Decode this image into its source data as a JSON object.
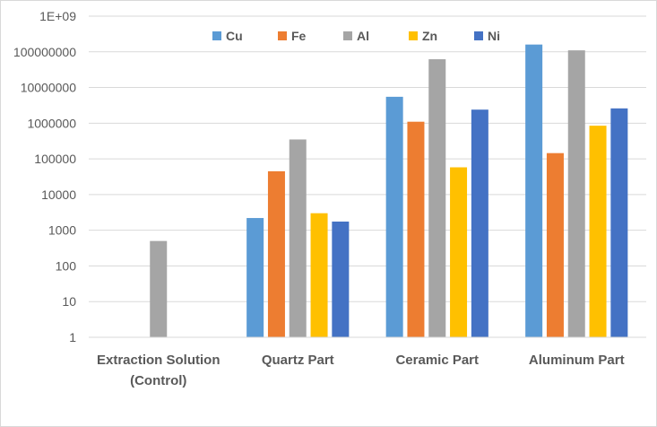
{
  "chart_data": {
    "type": "bar",
    "y_scale": "log",
    "ylim": [
      1,
      1000000000
    ],
    "y_ticks": [
      "1",
      "10",
      "100",
      "1000",
      "10000",
      "100000",
      "1000000",
      "10000000",
      "100000000",
      "1E+09"
    ],
    "grid": true,
    "legend_position": "top",
    "categories": [
      [
        "Extraction Solution",
        "(Control)"
      ],
      [
        "Quartz Part"
      ],
      [
        "Ceramic Part"
      ],
      [
        "Aluminum Part"
      ]
    ],
    "series": [
      {
        "name": "Cu",
        "color": "#5B9BD5",
        "values": [
          null,
          2200,
          5500000,
          160000000
        ]
      },
      {
        "name": "Fe",
        "color": "#ED7D31",
        "values": [
          null,
          45000,
          1100000,
          145000
        ]
      },
      {
        "name": "Al",
        "color": "#A5A5A5",
        "values": [
          500,
          350000,
          62000000,
          110000000
        ]
      },
      {
        "name": "Zn",
        "color": "#FFC000",
        "values": [
          null,
          3000,
          58000,
          850000
        ]
      },
      {
        "name": "Ni",
        "color": "#4472C4",
        "values": [
          null,
          1750,
          2400000,
          2600000
        ]
      }
    ]
  }
}
